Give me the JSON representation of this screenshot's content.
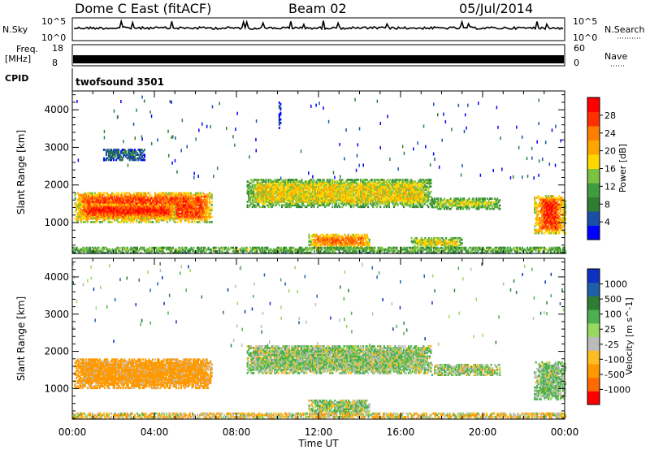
{
  "header": {
    "station": "Dome C East (fitACF)",
    "beam": "Beam 02",
    "date": "05/Jul/2014"
  },
  "noise_panel": {
    "left_label": "N.Sky",
    "right_label": "N.Search",
    "left_ticks": [
      "10^5",
      "10^0"
    ],
    "right_ticks": [
      "10^5",
      "10^0"
    ]
  },
  "freq_panel": {
    "label_line1": "Freq.",
    "label_line2": "[MHz]",
    "right_label": "Nave",
    "left_ticks": [
      "18",
      "8"
    ],
    "right_ticks": [
      "60",
      "0"
    ]
  },
  "cpid": {
    "label": "CPID",
    "value": "twofsound 3501"
  },
  "axes": {
    "ylabel": "Slant Range [km]",
    "xlabel": "Time UT",
    "x_ticks": [
      "00:00",
      "04:00",
      "08:00",
      "12:00",
      "16:00",
      "20:00",
      "00:00"
    ],
    "y_ticks": [
      "1000",
      "2000",
      "3000",
      "4000"
    ]
  },
  "colors": {
    "power": [
      "#0000ff",
      "#1a4fa8",
      "#2e7d32",
      "#3f9c3f",
      "#7cc242",
      "#ffd700",
      "#ffa500",
      "#ff7f00",
      "#ff3000",
      "#ff0000"
    ],
    "velocity": [
      "#ff0000",
      "#ff6a00",
      "#ff9900",
      "#ffbb22",
      "#bbbbbb",
      "#98d860",
      "#4caf50",
      "#2e7d32",
      "#1f5fa8",
      "#1030c0"
    ]
  },
  "chart_data": [
    {
      "type": "heatmap",
      "name": "Power",
      "colorbar_label": "Power [dB]",
      "colorbar_ticks": [
        "4",
        "8",
        "12",
        "16",
        "20",
        "24",
        "28"
      ],
      "x_range": [
        "00:00",
        "24:00"
      ],
      "ylim": [
        180,
        4500
      ],
      "echo_regions": [
        {
          "t0": 0.1,
          "t1": 6.8,
          "r0": 1000,
          "r1": 1800,
          "level": 0.85
        },
        {
          "t0": 0.3,
          "t1": 5.0,
          "r0": 1100,
          "r1": 1500,
          "level": 0.95
        },
        {
          "t0": 8.5,
          "t1": 17.5,
          "r0": 1400,
          "r1": 2150,
          "level": 0.55
        },
        {
          "t0": 17.5,
          "t1": 20.8,
          "r0": 1350,
          "r1": 1650,
          "level": 0.55
        },
        {
          "t0": 22.5,
          "t1": 24.0,
          "r0": 700,
          "r1": 1700,
          "level": 0.9
        },
        {
          "t0": 11.5,
          "t1": 14.5,
          "r0": 300,
          "r1": 700,
          "level": 0.8
        },
        {
          "t0": 16.5,
          "t1": 19.0,
          "r0": 300,
          "r1": 600,
          "level": 0.6
        },
        {
          "t0": 0.0,
          "t1": 24.0,
          "r0": 180,
          "r1": 350,
          "level": 0.5
        },
        {
          "t0": 1.5,
          "t1": 3.5,
          "r0": 2650,
          "r1": 2950,
          "level": 0.2
        },
        {
          "t0": 10.05,
          "t1": 10.15,
          "r0": 3500,
          "r1": 4200,
          "level": 0.1
        }
      ]
    },
    {
      "type": "heatmap",
      "name": "Velocity",
      "colorbar_label": "Velocity [m s^-1]",
      "colorbar_ticks": [
        "-1000",
        "-500",
        "-100",
        "-25",
        "25",
        "100",
        "500",
        "1000"
      ],
      "x_range": [
        "00:00",
        "24:00"
      ],
      "ylim": [
        180,
        4500
      ],
      "echo_regions": [
        {
          "t0": 0.1,
          "t1": 6.8,
          "r0": 1000,
          "r1": 1800,
          "level": -300
        },
        {
          "t0": 8.5,
          "t1": 17.5,
          "r0": 1400,
          "r1": 2150,
          "level": 100
        },
        {
          "t0": 17.5,
          "t1": 20.8,
          "r0": 1350,
          "r1": 1650,
          "level": 80
        },
        {
          "t0": 22.5,
          "t1": 24.0,
          "r0": 700,
          "r1": 1700,
          "level": 150
        },
        {
          "t0": 11.5,
          "t1": 14.5,
          "r0": 300,
          "r1": 700,
          "level": 90
        },
        {
          "t0": 0.0,
          "t1": 24.0,
          "r0": 180,
          "r1": 350,
          "level": -60
        }
      ]
    }
  ]
}
